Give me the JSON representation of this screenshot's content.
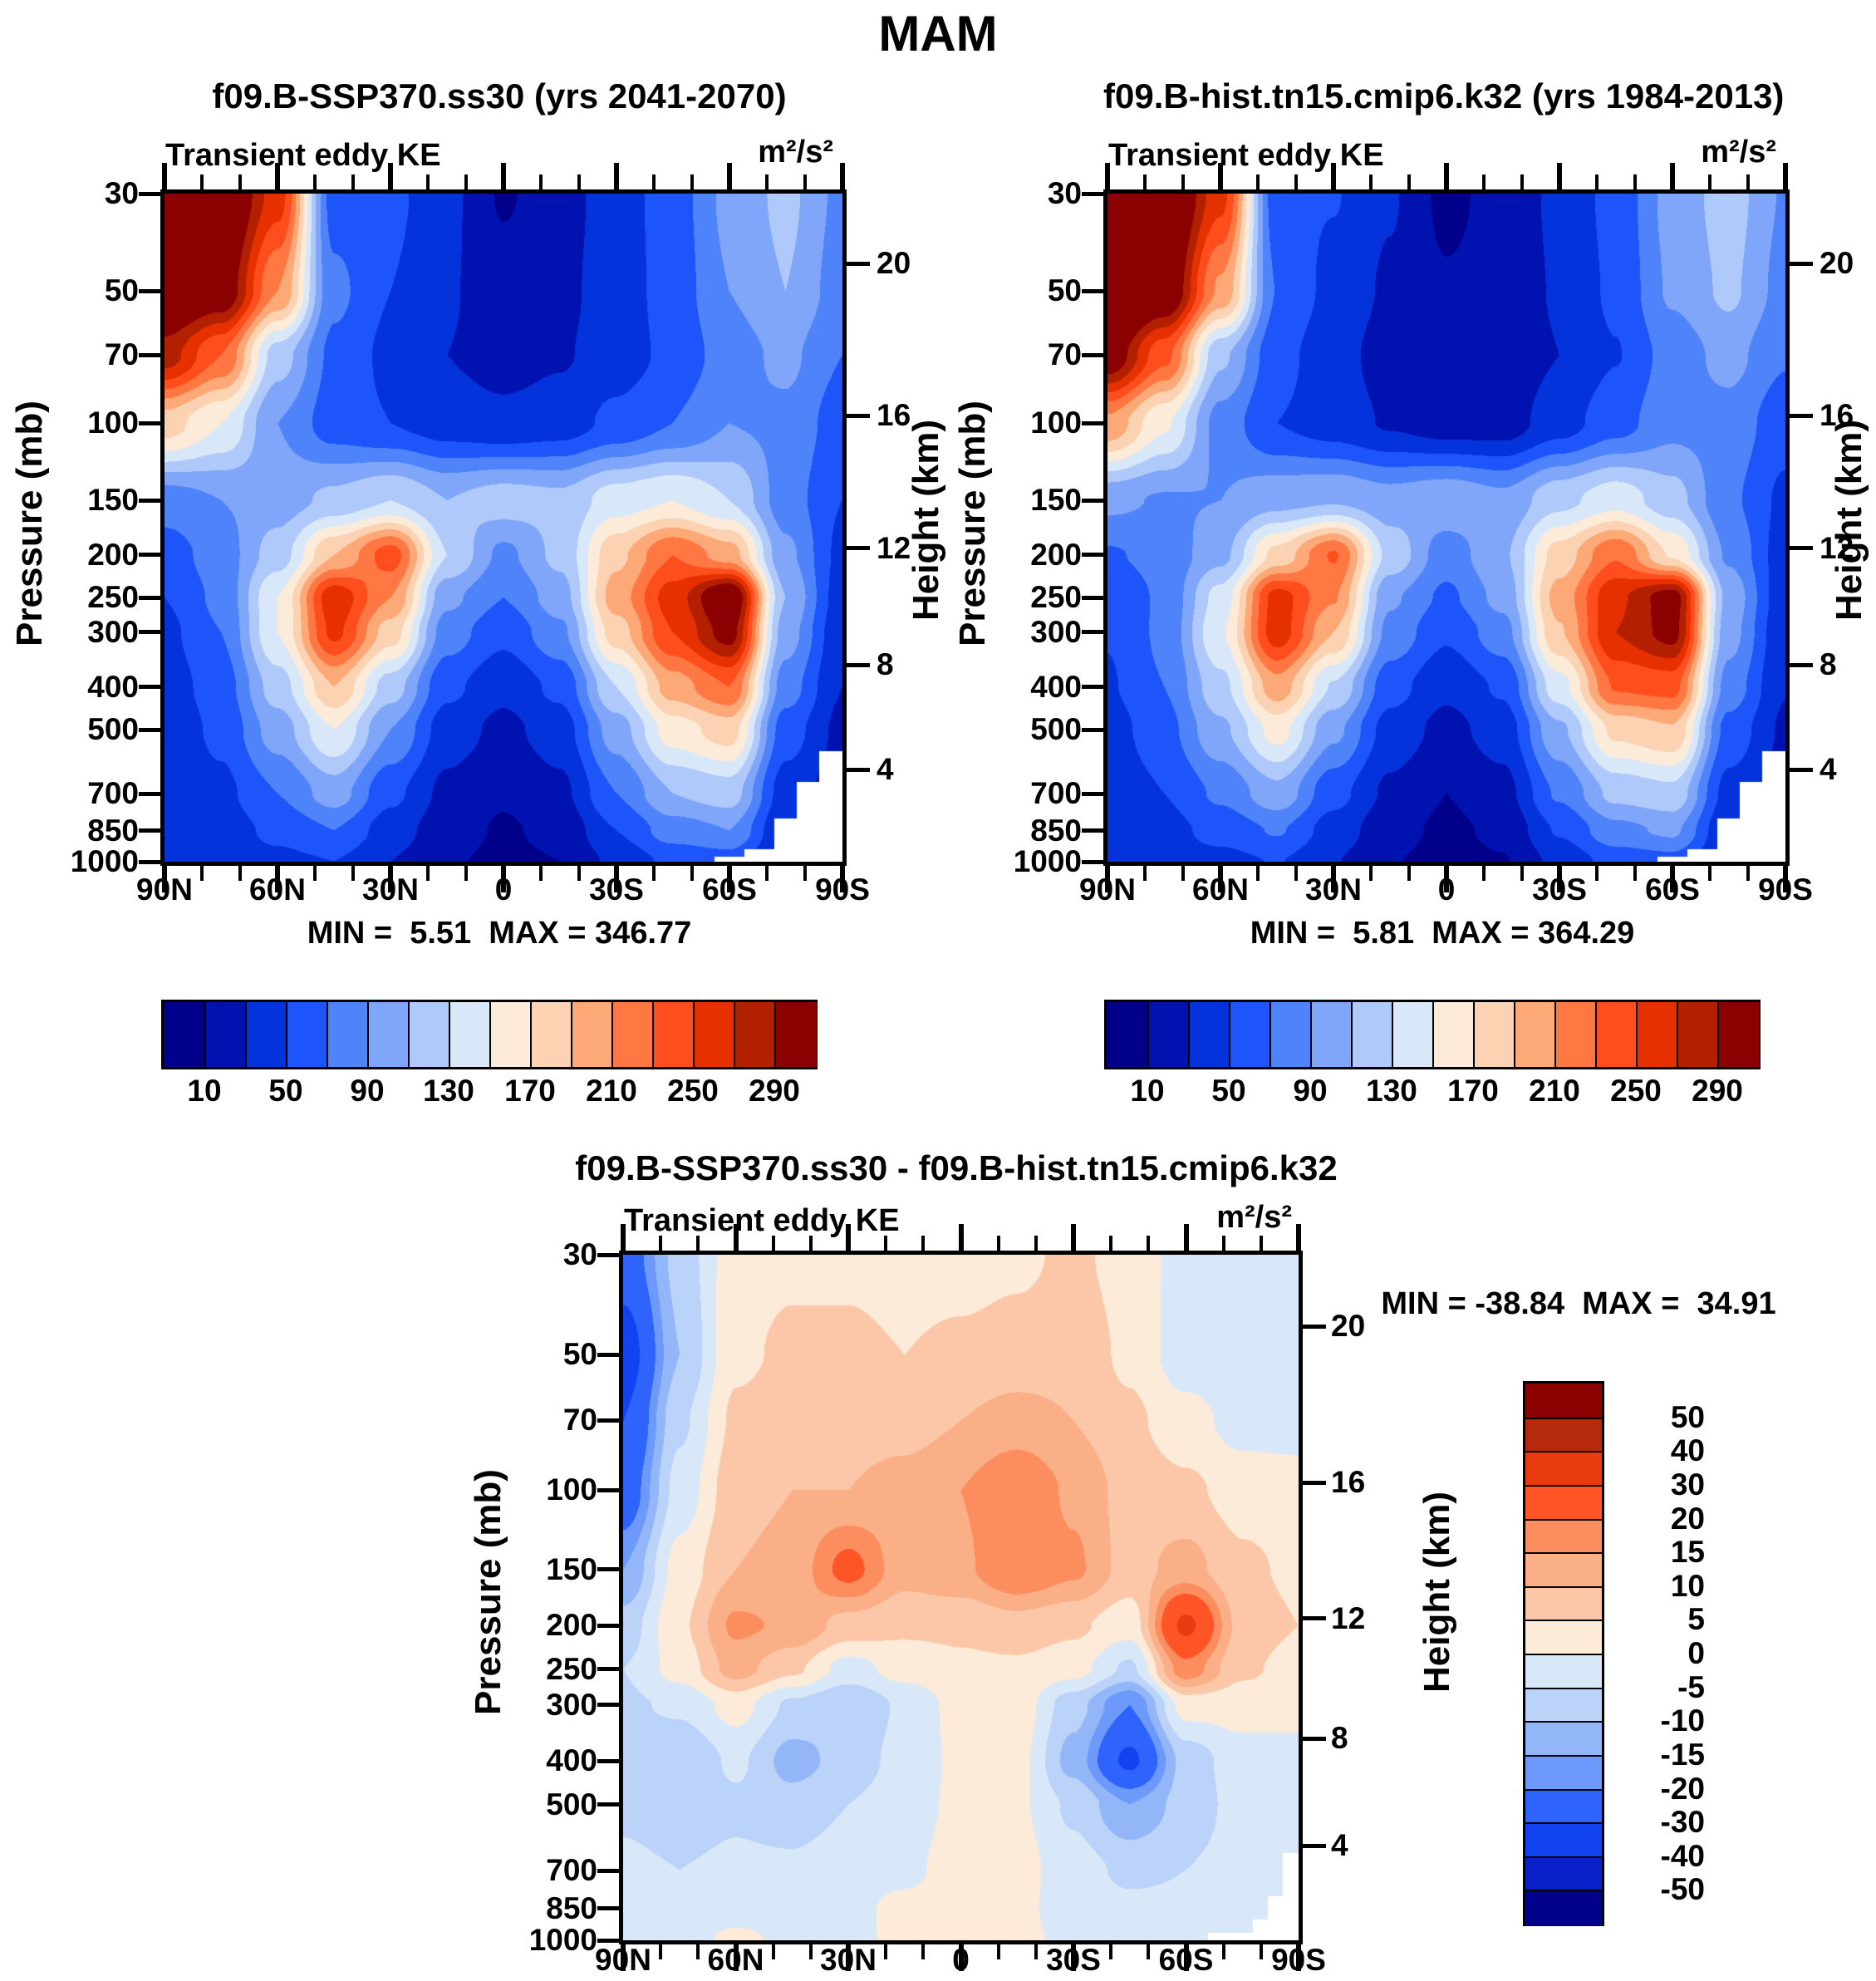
{
  "figure_title": "MAM",
  "panels": [
    {
      "title": "f09.B-SSP370.ss30 (yrs 2041-2070)",
      "subtitle_left": "Transient eddy KE",
      "subtitle_right": "m²/s²",
      "stats": "MIN =  5.51  MAX = 346.77"
    },
    {
      "title": "f09.B-hist.tn15.cmip6.k32 (yrs 1984-2013)",
      "subtitle_left": "Transient eddy KE",
      "subtitle_right": "m²/s²",
      "stats": "MIN =  5.81  MAX = 364.29"
    },
    {
      "title": "f09.B-SSP370.ss30 - f09.B-hist.tn15.cmip6.k32",
      "subtitle_left": "Transient eddy KE",
      "subtitle_right": "m²/s²",
      "stats": "MIN = -38.84  MAX =  34.91"
    }
  ],
  "axes": {
    "pressure_label": "Pressure (mb)",
    "height_label": "Height (km)",
    "pressure_ticks": [
      30,
      50,
      70,
      100,
      150,
      200,
      250,
      300,
      400,
      500,
      700,
      850,
      1000
    ],
    "height_ticks": [
      20,
      16,
      12,
      8,
      4
    ],
    "lat_tick_labels": [
      "90N",
      "60N",
      "30N",
      "0",
      "30S",
      "60S",
      "90S"
    ]
  },
  "colorbars": {
    "ke": {
      "orientation": "horizontal",
      "boundary_labels": [
        10,
        50,
        90,
        130,
        170,
        210,
        250,
        290
      ],
      "colors": [
        "#00008B",
        "#0012B0",
        "#0533DB",
        "#1E55FA",
        "#4F83FA",
        "#80A6FA",
        "#AFC9FA",
        "#D9E8F9",
        "#FDEBD9",
        "#FBD2B2",
        "#FCA877",
        "#FF7844",
        "#FF4E1E",
        "#E63000",
        "#B22000",
        "#8B0000"
      ]
    },
    "diff": {
      "orientation": "vertical",
      "boundary_labels_top_to_bottom": [
        50,
        40,
        30,
        20,
        15,
        10,
        5,
        0,
        -5,
        -10,
        -15,
        -20,
        -30,
        -40,
        -50
      ],
      "colors_low_to_high": [
        "#00008B",
        "#0A20C8",
        "#1243F0",
        "#2E63FC",
        "#6C99FA",
        "#93B6F9",
        "#BBD3F8",
        "#D9E8F9",
        "#FDEBD9",
        "#FBC7A8",
        "#FBAF87",
        "#FC8D5E",
        "#FF5526",
        "#E83C10",
        "#B52A0C",
        "#8B0000"
      ]
    }
  },
  "chart_data": [
    {
      "id": "ssp370",
      "type": "heatmap",
      "title": "f09.B-SSP370.ss30 (yrs 2041-2070)",
      "field": "Transient eddy KE",
      "units": "m²/s²",
      "min": 5.51,
      "max": 346.77,
      "lats": [
        90,
        75,
        60,
        45,
        30,
        15,
        0,
        -15,
        -30,
        -45,
        -60,
        -75,
        -90
      ],
      "pressures_mb": [
        30,
        50,
        70,
        100,
        150,
        200,
        250,
        300,
        400,
        500,
        700,
        850,
        1000
      ],
      "levels": [
        10,
        30,
        50,
        70,
        90,
        110,
        130,
        150,
        170,
        190,
        210,
        230,
        250,
        270,
        290
      ],
      "colors": [
        "#00008B",
        "#0012B0",
        "#0533DB",
        "#1E55FA",
        "#4F83FA",
        "#80A6FA",
        "#AFC9FA",
        "#D9E8F9",
        "#FDEBD9",
        "#FBD2B2",
        "#FCA877",
        "#FF7844",
        "#FF4E1E",
        "#E63000",
        "#B22000",
        "#8B0000"
      ],
      "values": [
        [
          345,
          330,
          260,
          60,
          55,
          35,
          8,
          22,
          40,
          60,
          95,
          115,
          85
        ],
        [
          330,
          310,
          210,
          75,
          50,
          32,
          18,
          25,
          40,
          58,
          90,
          110,
          80
        ],
        [
          280,
          230,
          120,
          65,
          45,
          30,
          22,
          28,
          40,
          55,
          80,
          95,
          70
        ],
        [
          180,
          150,
          90,
          60,
          50,
          40,
          35,
          40,
          55,
          70,
          90,
          85,
          60
        ],
        [
          80,
          90,
          100,
          115,
          130,
          110,
          120,
          115,
          140,
          150,
          130,
          80,
          50
        ],
        [
          60,
          80,
          120,
          190,
          240,
          130,
          85,
          115,
          185,
          230,
          200,
          95,
          45
        ],
        [
          50,
          75,
          150,
          265,
          210,
          95,
          70,
          100,
          200,
          260,
          320,
          110,
          40
        ],
        [
          45,
          70,
          150,
          255,
          180,
          80,
          55,
          85,
          180,
          250,
          300,
          100,
          35
        ],
        [
          40,
          60,
          120,
          190,
          120,
          55,
          35,
          55,
          130,
          200,
          230,
          80,
          30
        ],
        [
          35,
          55,
          100,
          150,
          90,
          40,
          25,
          40,
          100,
          160,
          180,
          60,
          25
        ],
        [
          30,
          45,
          70,
          100,
          55,
          25,
          12,
          25,
          70,
          110,
          120,
          40,
          20
        ],
        [
          30,
          40,
          55,
          70,
          40,
          18,
          8,
          15,
          50,
          80,
          90,
          30,
          20
        ],
        [
          35,
          40,
          45,
          50,
          30,
          12,
          6,
          10,
          35,
          55,
          60,
          25,
          20
        ]
      ]
    },
    {
      "id": "hist",
      "type": "heatmap",
      "title": "f09.B-hist.tn15.cmip6.k32 (yrs 1984-2013)",
      "field": "Transient eddy KE",
      "units": "m²/s²",
      "min": 5.81,
      "max": 364.29,
      "lats": [
        90,
        75,
        60,
        45,
        30,
        15,
        0,
        -15,
        -30,
        -45,
        -60,
        -75,
        -90
      ],
      "pressures_mb": [
        30,
        50,
        70,
        100,
        150,
        200,
        250,
        300,
        400,
        500,
        700,
        850,
        1000
      ],
      "levels": [
        10,
        30,
        50,
        70,
        90,
        110,
        130,
        150,
        170,
        190,
        210,
        230,
        250,
        270,
        290
      ],
      "colors": [
        "#00008B",
        "#0012B0",
        "#0533DB",
        "#1E55FA",
        "#4F83FA",
        "#80A6FA",
        "#AFC9FA",
        "#D9E8F9",
        "#FDEBD9",
        "#FBD2B2",
        "#FCA877",
        "#FF7844",
        "#FF4E1E",
        "#E63000",
        "#B22000",
        "#8B0000"
      ],
      "values": [
        [
          370,
          338,
          257,
          56,
          51,
          32,
          5,
          18,
          34,
          57,
          97,
          119,
          88
        ],
        [
          365,
          320,
          206,
          69,
          44,
          27,
          12,
          18,
          32,
          54,
          93,
          114,
          83
        ],
        [
          310,
          236,
          114,
          57,
          37,
          22,
          12,
          16,
          30,
          49,
          78,
          97,
          72
        ],
        [
          205,
          153,
          82,
          50,
          40,
          28,
          20,
          20,
          41,
          62,
          84,
          82,
          58
        ],
        [
          95,
          88,
          90,
          103,
          108,
          98,
          106,
          95,
          124,
          142,
          118,
          74,
          46
        ],
        [
          68,
          76,
          104,
          176,
          232,
          124,
          79,
          107,
          179,
          228,
          168,
          87,
          40
        ],
        [
          55,
          73,
          138,
          259,
          212,
          93,
          66,
          96,
          198,
          266,
          302,
          104,
          37
        ],
        [
          51,
          74,
          148,
          261,
          190,
          84,
          53,
          82,
          188,
          270,
          298,
          98,
          34
        ],
        [
          48,
          70,
          124,
          202,
          128,
          58,
          34,
          53,
          142,
          232,
          238,
          82,
          31
        ],
        [
          41,
          63,
          106,
          158,
          95,
          42,
          24,
          39,
          106,
          175,
          188,
          63,
          27
        ],
        [
          34,
          50,
          74,
          104,
          57,
          26,
          10,
          23,
          73,
          116,
          125,
          43,
          22
        ],
        [
          33,
          43,
          57,
          72,
          41,
          17,
          6,
          14,
          52,
          84,
          94,
          32,
          22
        ],
        [
          37,
          42,
          44,
          51,
          31,
          11,
          4,
          9,
          36,
          58,
          63,
          27,
          22
        ]
      ]
    },
    {
      "id": "diff",
      "type": "heatmap",
      "title": "f09.B-SSP370.ss30 - f09.B-hist.tn15.cmip6.k32",
      "field": "Transient eddy KE",
      "units": "m²/s²",
      "min": -38.84,
      "max": 34.91,
      "lats": [
        90,
        75,
        60,
        45,
        30,
        15,
        0,
        -15,
        -30,
        -45,
        -60,
        -75,
        -90
      ],
      "pressures_mb": [
        30,
        50,
        70,
        100,
        150,
        200,
        250,
        300,
        400,
        500,
        700,
        850,
        1000
      ],
      "levels": [
        -50,
        -40,
        -30,
        -20,
        -15,
        -10,
        -5,
        0,
        5,
        10,
        15,
        20,
        30,
        40,
        50
      ],
      "colors": [
        "#00008B",
        "#0A20C8",
        "#1243F0",
        "#2E63FC",
        "#6C99FA",
        "#93B6F9",
        "#BBD3F8",
        "#D9E8F9",
        "#FDEBD9",
        "#FBC7A8",
        "#FBAF87",
        "#FC8D5E",
        "#FF5526",
        "#E83C10",
        "#B52A0C",
        "#8B0000"
      ],
      "values": [
        [
          -25,
          -8,
          3,
          4,
          4,
          3,
          3,
          4,
          6,
          3,
          -2,
          -4,
          -3
        ],
        [
          -35,
          -10,
          4,
          6,
          6,
          5,
          6,
          7,
          8,
          4,
          -3,
          -4,
          -3
        ],
        [
          -30,
          -6,
          6,
          8,
          8,
          8,
          10,
          12,
          10,
          6,
          2,
          -2,
          -2
        ],
        [
          -25,
          -3,
          8,
          10,
          10,
          12,
          15,
          20,
          14,
          8,
          6,
          3,
          2
        ],
        [
          -15,
          2,
          10,
          12,
          22,
          12,
          14,
          20,
          16,
          8,
          12,
          6,
          4
        ],
        [
          -8,
          4,
          16,
          14,
          8,
          6,
          6,
          8,
          6,
          2,
          32,
          8,
          5
        ],
        [
          -5,
          2,
          12,
          6,
          -2,
          2,
          4,
          4,
          2,
          -6,
          18,
          6,
          3
        ],
        [
          -6,
          -4,
          2,
          -6,
          -10,
          -4,
          2,
          3,
          -8,
          -20,
          2,
          2,
          1
        ],
        [
          -8,
          -10,
          -4,
          -12,
          -8,
          -3,
          1,
          2,
          -12,
          -32,
          -8,
          -2,
          -1
        ],
        [
          -6,
          -8,
          -6,
          -8,
          -5,
          -2,
          1,
          1,
          -6,
          -15,
          -8,
          -3,
          -2
        ],
        [
          -4,
          -5,
          -4,
          -4,
          -2,
          -1,
          2,
          2,
          -3,
          -6,
          -5,
          -3,
          -2
        ],
        [
          -3,
          -3,
          -2,
          -2,
          -1,
          1,
          2,
          1,
          -2,
          -4,
          -4,
          -2,
          -2
        ],
        [
          -2,
          -2,
          1,
          -1,
          -1,
          1,
          2,
          1,
          -1,
          -3,
          -3,
          -2,
          -2
        ]
      ]
    }
  ]
}
